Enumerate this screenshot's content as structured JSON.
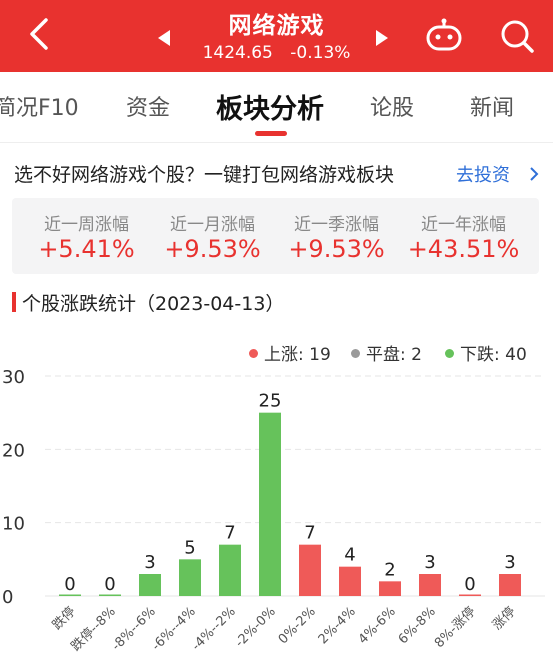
{
  "header": {
    "title": "网络游戏",
    "price": "1424.65",
    "change": "-0.13%",
    "bg_color": "#e8322f"
  },
  "icons": [
    "back-arrow-icon",
    "prev-triangle-icon",
    "next-triangle-icon",
    "robot-icon",
    "search-icon",
    "chevron-right-icon"
  ],
  "tabs": [
    {
      "label": "简况F10",
      "active": false
    },
    {
      "label": "资金",
      "active": false
    },
    {
      "label": "板块分析",
      "active": true
    },
    {
      "label": "论股",
      "active": false
    },
    {
      "label": "新闻",
      "active": false
    }
  ],
  "promo": {
    "text": "选不好网络游戏个股？一键打包网络游戏板块",
    "link": "去投资"
  },
  "stats": [
    {
      "label": "近一周涨幅",
      "value": "+5.41%"
    },
    {
      "label": "近一月涨幅",
      "value": "+9.53%"
    },
    {
      "label": "近一季涨幅",
      "value": "+9.53%"
    },
    {
      "label": "近一年涨幅",
      "value": "+43.51%"
    }
  ],
  "section": {
    "title": "个股涨跌统计（2023-04-13）"
  },
  "legend": [
    {
      "label": "上涨: 19",
      "color": "#ef5a58"
    },
    {
      "label": "平盘: 2",
      "color": "#9a9a9a"
    },
    {
      "label": "下跌: 40",
      "color": "#66c25b"
    }
  ],
  "chart_data": {
    "type": "bar",
    "categories": [
      "跌停",
      "跌停--8%",
      "-8%--6%",
      "-6%--4%",
      "-4%--2%",
      "-2%-0%",
      "0%-2%",
      "2%-4%",
      "4%-6%",
      "6%-8%",
      "8%-涨停",
      "涨停"
    ],
    "values": [
      0,
      0,
      3,
      5,
      7,
      25,
      7,
      4,
      2,
      3,
      0,
      3
    ],
    "colors": [
      "#66c25b",
      "#66c25b",
      "#66c25b",
      "#66c25b",
      "#66c25b",
      "#66c25b",
      "#ef5a58",
      "#ef5a58",
      "#ef5a58",
      "#ef5a58",
      "#ef5a58",
      "#ef5a58"
    ],
    "yticks": [
      0,
      10,
      20,
      30
    ],
    "ylim": [
      0,
      30
    ],
    "grid": true
  }
}
